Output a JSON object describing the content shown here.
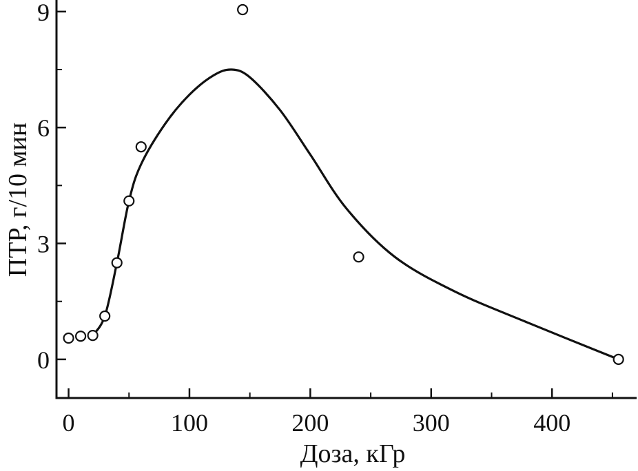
{
  "chart_data": {
    "type": "scatter",
    "title": "",
    "xlabel": "Доза, кГр",
    "ylabel": "ПТР, г/10 мин",
    "xlim": [
      -10,
      470
    ],
    "ylim": [
      -1,
      9.3
    ],
    "xticks": [
      0,
      100,
      200,
      300,
      400
    ],
    "yticks": [
      0,
      3,
      6,
      9
    ],
    "xtick_labels": [
      "0",
      "100",
      "200",
      "300",
      "400"
    ],
    "ytick_labels": [
      "0",
      "3",
      "6",
      "9"
    ],
    "grid": false,
    "legend": "none",
    "colors": {
      "axes": "#111111",
      "curve": "#111111",
      "marker_fill": "#ffffff",
      "marker_stroke": "#111111"
    },
    "series": [
      {
        "type": "scatter",
        "marker": "open-circle",
        "x": [
          0,
          10,
          20,
          30,
          40,
          50,
          60,
          144,
          240,
          455
        ],
        "y": [
          0.55,
          0.6,
          0.62,
          1.12,
          2.5,
          4.1,
          5.5,
          9.05,
          2.65,
          0.0
        ]
      },
      {
        "type": "line",
        "style": "smooth",
        "x": [
          20,
          30,
          40,
          50,
          60,
          80,
          100,
          120,
          135,
          150,
          175,
          200,
          230,
          270,
          320,
          380,
          455
        ],
        "y": [
          0.62,
          1.12,
          2.5,
          4.1,
          5.05,
          6.1,
          6.85,
          7.35,
          7.5,
          7.3,
          6.45,
          5.3,
          3.9,
          2.65,
          1.75,
          0.95,
          0.0
        ]
      }
    ]
  }
}
